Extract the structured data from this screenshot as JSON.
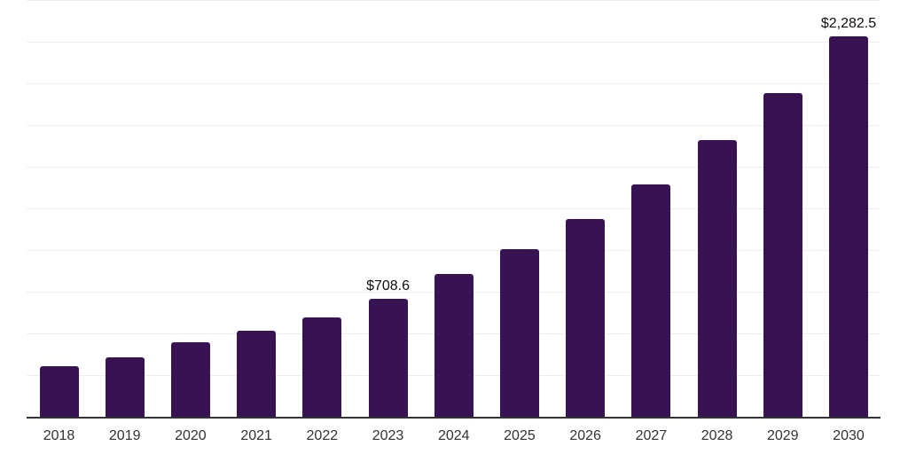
{
  "chart": {
    "background_color": "#ffffff",
    "bar_color": "#371353",
    "axis_line_color": "#333333",
    "gridline_color": "#eeeeee",
    "tick_label_color": "#333333",
    "data_label_color": "#0d0d0d"
  },
  "chart_data": {
    "type": "bar",
    "categories": [
      "2018",
      "2019",
      "2020",
      "2021",
      "2022",
      "2023",
      "2024",
      "2025",
      "2026",
      "2027",
      "2028",
      "2029",
      "2030"
    ],
    "values": [
      303,
      358,
      447,
      516,
      596,
      708.6,
      858,
      1007,
      1188,
      1396,
      1657,
      1944,
      2282.5
    ],
    "labeled_points": [
      {
        "category": "2023",
        "label": "$708.6"
      },
      {
        "category": "2030",
        "label": "$2,282.5"
      }
    ],
    "title": "",
    "xlabel": "",
    "ylabel": "",
    "ylim": [
      0,
      2500
    ],
    "gridline_step": 250,
    "grid": "horizontal",
    "y_axis_tick_labels": "none",
    "legend": "none"
  }
}
